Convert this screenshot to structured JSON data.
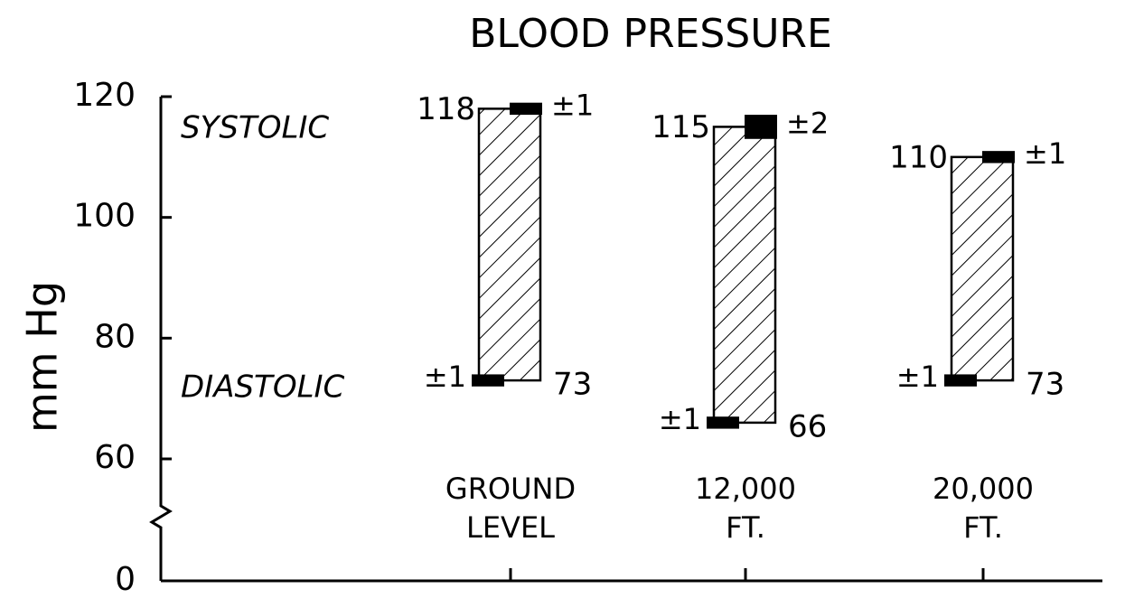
{
  "chart_data": {
    "type": "floating_bar",
    "title": "BLOOD PRESSURE",
    "ylabel": "mm Hg",
    "categories": [
      [
        "GROUND",
        "LEVEL"
      ],
      [
        "12,000",
        "FT."
      ],
      [
        "20,000",
        "FT."
      ]
    ],
    "series": [
      {
        "name": "SYSTOLIC",
        "values": [
          118,
          115,
          110
        ],
        "errors": [
          1,
          2,
          1
        ],
        "error_labels": [
          "±1",
          "±2",
          "±1"
        ]
      },
      {
        "name": "DIASTOLIC",
        "values": [
          73,
          66,
          73
        ],
        "errors": [
          1,
          1,
          1
        ],
        "error_labels": [
          "±1",
          "±1",
          "±1"
        ]
      }
    ],
    "ylim": [
      0,
      120
    ],
    "yticks": [
      0,
      60,
      80,
      100,
      120
    ],
    "axis_break": true,
    "color": "#000000"
  }
}
